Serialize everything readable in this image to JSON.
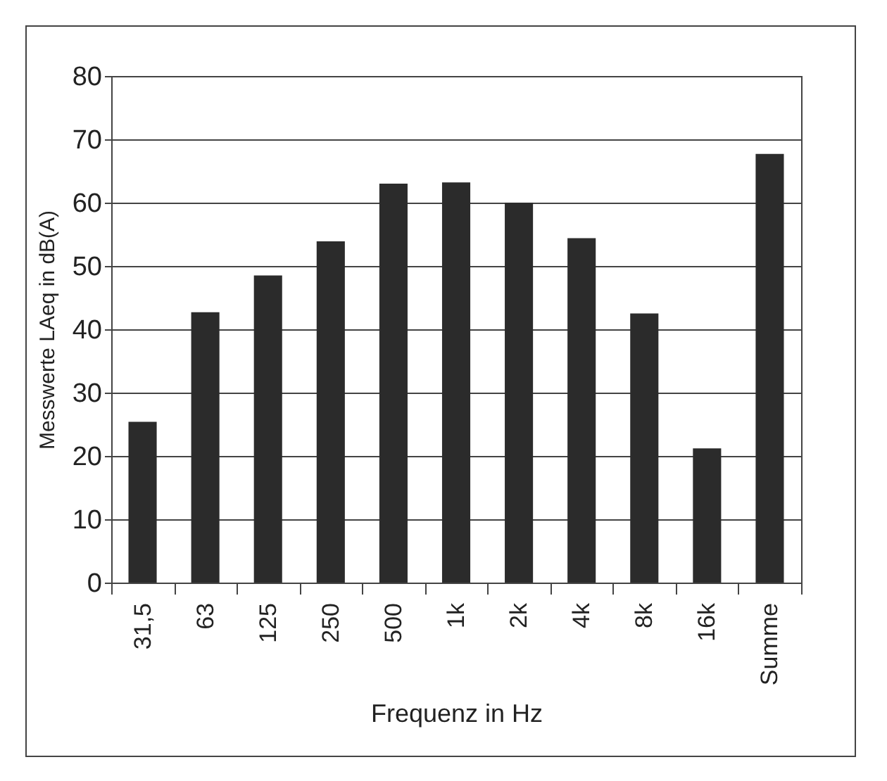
{
  "chart_data": {
    "type": "bar",
    "xlabel": "Frequenz in Hz",
    "ylabel": "Messwerte LAeq in dB(A)",
    "categories": [
      "31,5",
      "63",
      "125",
      "250",
      "500",
      "1k",
      "2k",
      "4k",
      "8k",
      "16k",
      "Summe"
    ],
    "values": [
      25.4,
      42.7,
      48.5,
      53.9,
      63.0,
      63.2,
      60.0,
      54.4,
      42.5,
      21.2,
      67.7
    ],
    "color": "#2b2b2b",
    "ylim": [
      0,
      80
    ],
    "yticks": [
      0,
      10,
      20,
      30,
      40,
      50,
      60,
      70,
      80
    ],
    "grid": "y"
  }
}
